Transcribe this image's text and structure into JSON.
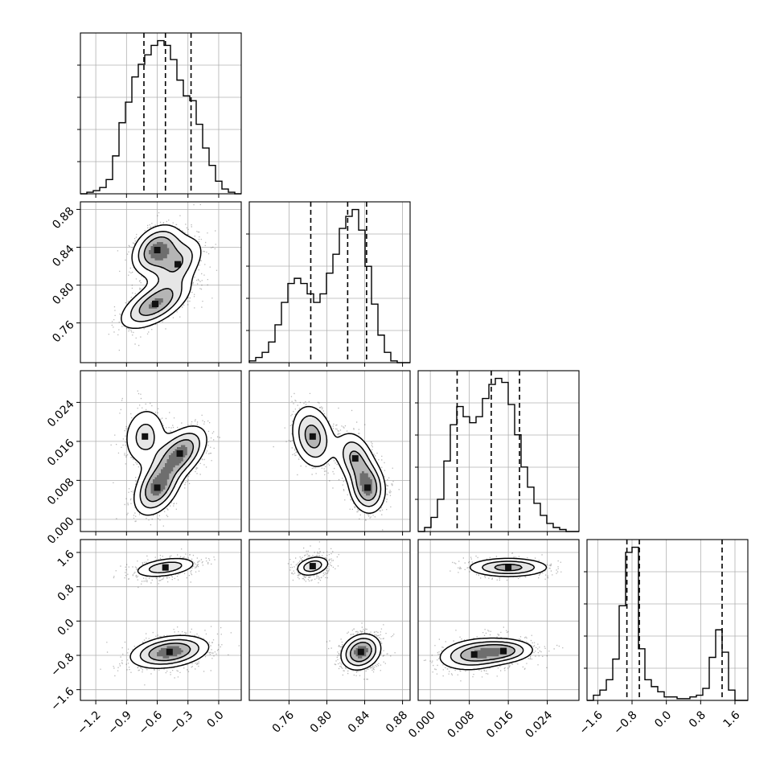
{
  "chart_data": {
    "type": "corner",
    "grid": true,
    "parameters": [
      {
        "range": [
          -1.35,
          0.22
        ],
        "ticks": [
          -1.2,
          -0.9,
          -0.6,
          -0.3,
          0.0
        ],
        "tick_labels": [
          "−1.2",
          "−0.9",
          "−0.6",
          "−0.3",
          "0.0"
        ]
      },
      {
        "range": [
          0.718,
          0.888
        ],
        "ticks": [
          0.76,
          0.8,
          0.84,
          0.88
        ],
        "tick_labels": [
          "0.76",
          "0.80",
          "0.84",
          "0.88"
        ]
      },
      {
        "range": [
          -0.0025,
          0.0305
        ],
        "ticks": [
          0.0,
          0.008,
          0.016,
          0.024
        ],
        "tick_labels": [
          "0.000",
          "0.008",
          "0.016",
          "0.024"
        ]
      },
      {
        "range": [
          -1.85,
          1.9
        ],
        "ticks": [
          -1.6,
          -0.8,
          0.0,
          0.8,
          1.6
        ],
        "tick_labels": [
          "−1.6",
          "−0.8",
          "0.0",
          "0.8",
          "1.6"
        ]
      }
    ],
    "quantiles": [
      [
        -0.73,
        -0.52,
        -0.27
      ],
      [
        0.783,
        0.822,
        0.842
      ],
      [
        0.0055,
        0.0125,
        0.0183
      ],
      [
        -0.92,
        -0.63,
        1.3
      ]
    ],
    "histograms": [
      {
        "edges_range": [
          -1.35,
          0.22
        ],
        "counts": [
          0,
          1,
          2,
          4,
          9,
          24,
          45,
          58,
          74,
          82,
          88,
          94,
          97,
          94,
          85,
          72,
          62,
          59,
          44,
          29,
          18,
          8,
          3,
          1,
          0
        ]
      },
      {
        "edges_range": [
          0.718,
          0.888
        ],
        "counts": [
          1,
          3,
          6,
          12,
          22,
          35,
          46,
          49,
          46,
          40,
          35,
          40,
          52,
          63,
          78,
          85,
          89,
          77,
          56,
          34,
          16,
          6,
          1,
          0,
          0
        ]
      },
      {
        "edges_range": [
          -0.0025,
          0.0305
        ],
        "counts": [
          0,
          2,
          7,
          16,
          35,
          53,
          62,
          57,
          54,
          57,
          66,
          73,
          76,
          74,
          63,
          48,
          32,
          22,
          14,
          8,
          4,
          2,
          1,
          0,
          0
        ]
      },
      {
        "edges_range": [
          -1.85,
          1.9
        ],
        "counts": [
          0,
          3,
          6,
          12,
          24,
          55,
          86,
          89,
          30,
          12,
          8,
          5,
          2,
          2,
          1,
          1,
          2,
          3,
          7,
          25,
          41,
          28,
          6,
          0,
          0
        ]
      }
    ],
    "pairs": [
      {
        "x": 0,
        "y": 1,
        "blobs": [
          {
            "cx": -0.6,
            "cy": 0.837,
            "sx": 0.13,
            "sy": 0.014,
            "rho": 0.3,
            "w": 0.5
          },
          {
            "cx": -0.4,
            "cy": 0.822,
            "sx": 0.14,
            "sy": 0.016,
            "rho": 0.5,
            "w": 0.3
          },
          {
            "cx": -0.62,
            "cy": 0.78,
            "sx": 0.18,
            "sy": 0.014,
            "rho": 0.6,
            "w": 0.45
          }
        ]
      },
      {
        "x": 0,
        "y": 2,
        "blobs": [
          {
            "cx": -0.6,
            "cy": 0.0065,
            "sx": 0.12,
            "sy": 0.003,
            "rho": 0.4,
            "w": 0.5
          },
          {
            "cx": -0.38,
            "cy": 0.0135,
            "sx": 0.14,
            "sy": 0.003,
            "rho": 0.5,
            "w": 0.5
          },
          {
            "cx": -0.72,
            "cy": 0.017,
            "sx": 0.12,
            "sy": 0.0035,
            "rho": 0.1,
            "w": 0.25
          }
        ]
      },
      {
        "x": 1,
        "y": 2,
        "blobs": [
          {
            "cx": 0.785,
            "cy": 0.017,
            "sx": 0.012,
            "sy": 0.0035,
            "rho": -0.2,
            "w": 0.45
          },
          {
            "cx": 0.83,
            "cy": 0.0125,
            "sx": 0.011,
            "sy": 0.003,
            "rho": -0.3,
            "w": 0.4
          },
          {
            "cx": 0.843,
            "cy": 0.0065,
            "sx": 0.01,
            "sy": 0.0028,
            "rho": -0.1,
            "w": 0.55
          }
        ]
      },
      {
        "x": 0,
        "y": 3,
        "blobs": [
          {
            "cx": -0.52,
            "cy": 1.25,
            "sx": 0.17,
            "sy": 0.13,
            "rho": 0.4,
            "w": 0.45
          },
          {
            "cx": -0.48,
            "cy": -0.72,
            "sx": 0.2,
            "sy": 0.2,
            "rho": 0.3,
            "w": 0.8
          }
        ]
      },
      {
        "x": 1,
        "y": 3,
        "blobs": [
          {
            "cx": 0.785,
            "cy": 1.28,
            "sx": 0.01,
            "sy": 0.13,
            "rho": 0.3,
            "w": 0.45
          },
          {
            "cx": 0.836,
            "cy": -0.72,
            "sx": 0.011,
            "sy": 0.22,
            "rho": 0.2,
            "w": 0.8
          }
        ]
      },
      {
        "x": 2,
        "y": 3,
        "blobs": [
          {
            "cx": 0.016,
            "cy": 1.25,
            "sx": 0.0045,
            "sy": 0.12,
            "rho": 0.0,
            "w": 0.45
          },
          {
            "cx": 0.009,
            "cy": -0.78,
            "sx": 0.004,
            "sy": 0.2,
            "rho": 0.2,
            "w": 0.45
          },
          {
            "cx": 0.015,
            "cy": -0.7,
            "sx": 0.0035,
            "sy": 0.15,
            "rho": 0.1,
            "w": 0.4
          }
        ]
      }
    ]
  }
}
